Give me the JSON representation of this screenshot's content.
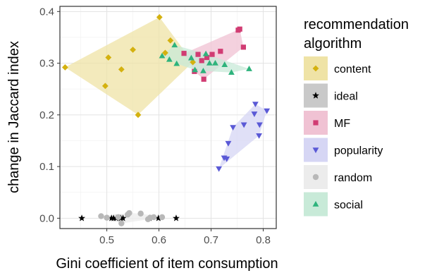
{
  "chart_data": {
    "type": "scatter",
    "title": "",
    "xlabel": "Gini coefficient of item consumption",
    "ylabel": "change in Jaccard index",
    "xlim": [
      0.41,
      0.825
    ],
    "ylim": [
      -0.02,
      0.41
    ],
    "x_ticks": [
      0.5,
      0.6,
      0.7,
      0.8
    ],
    "x_tick_labels": [
      "0.5",
      "0.6",
      "0.7",
      "0.8"
    ],
    "y_ticks": [
      0.0,
      0.1,
      0.2,
      0.3,
      0.4
    ],
    "y_tick_labels": [
      "0.0",
      "0.1",
      "0.2",
      "0.3",
      "0.4"
    ],
    "grid": true,
    "legend": {
      "title_lines": [
        "recommendation",
        "algorithm"
      ],
      "position": "right"
    },
    "series": [
      {
        "name": "content",
        "color": "#d4b10f",
        "fill": "#efe3a6",
        "marker": "diamond",
        "points": [
          [
            0.42,
            0.292
          ],
          [
            0.497,
            0.256
          ],
          [
            0.503,
            0.311
          ],
          [
            0.528,
            0.288
          ],
          [
            0.55,
            0.326
          ],
          [
            0.56,
            0.2
          ],
          [
            0.601,
            0.389
          ],
          [
            0.612,
            0.32
          ],
          [
            0.622,
            0.344
          ],
          [
            0.665,
            0.302
          ]
        ]
      },
      {
        "name": "ideal",
        "color": "#000000",
        "fill": "#c9c9c9",
        "marker": "star",
        "points": [
          [
            0.452,
            0.0
          ],
          [
            0.509,
            0.0
          ],
          [
            0.513,
            0.0
          ],
          [
            0.518,
            0.0
          ],
          [
            0.527,
            0.0
          ],
          [
            0.531,
            0.0
          ],
          [
            0.582,
            0.0
          ],
          [
            0.599,
            0.0
          ],
          [
            0.633,
            0.0
          ]
        ]
      },
      {
        "name": "MF",
        "color": "#d13c73",
        "fill": "#f0c2d3",
        "marker": "square",
        "points": [
          [
            0.648,
            0.319
          ],
          [
            0.668,
            0.284
          ],
          [
            0.675,
            0.317
          ],
          [
            0.682,
            0.305
          ],
          [
            0.686,
            0.269
          ],
          [
            0.692,
            0.311
          ],
          [
            0.702,
            0.317
          ],
          [
            0.718,
            0.323
          ],
          [
            0.752,
            0.364
          ],
          [
            0.755,
            0.366
          ],
          [
            0.762,
            0.331
          ]
        ]
      },
      {
        "name": "popularity",
        "color": "#5a59d6",
        "fill": "#d6d6f4",
        "marker": "triangle-down",
        "points": [
          [
            0.715,
            0.096
          ],
          [
            0.725,
            0.117
          ],
          [
            0.73,
            0.115
          ],
          [
            0.733,
            0.145
          ],
          [
            0.742,
            0.176
          ],
          [
            0.763,
            0.181
          ],
          [
            0.783,
            0.202
          ],
          [
            0.785,
            0.221
          ],
          [
            0.792,
            0.16
          ],
          [
            0.793,
            0.181
          ],
          [
            0.807,
            0.208
          ]
        ]
      },
      {
        "name": "random",
        "color": "#b8b8b8",
        "fill": "#ececec",
        "marker": "circle",
        "points": [
          [
            0.489,
            0.004
          ],
          [
            0.5,
            0.001
          ],
          [
            0.522,
            0.002
          ],
          [
            0.528,
            -0.01
          ],
          [
            0.54,
            0.007
          ],
          [
            0.543,
            0.01
          ],
          [
            0.565,
            0.009
          ],
          [
            0.579,
            -0.002
          ],
          [
            0.583,
            0.001
          ],
          [
            0.59,
            0.002
          ],
          [
            0.606,
            0.002
          ]
        ]
      },
      {
        "name": "social",
        "color": "#2eb37c",
        "fill": "#c8ead8",
        "marker": "triangle-up",
        "points": [
          [
            0.606,
            0.314
          ],
          [
            0.62,
            0.307
          ],
          [
            0.63,
            0.335
          ],
          [
            0.634,
            0.299
          ],
          [
            0.662,
            0.31
          ],
          [
            0.669,
            0.287
          ],
          [
            0.685,
            0.285
          ],
          [
            0.69,
            0.318
          ],
          [
            0.697,
            0.3
          ],
          [
            0.708,
            0.3
          ],
          [
            0.726,
            0.297
          ],
          [
            0.739,
            0.282
          ],
          [
            0.773,
            0.289
          ]
        ]
      }
    ]
  }
}
